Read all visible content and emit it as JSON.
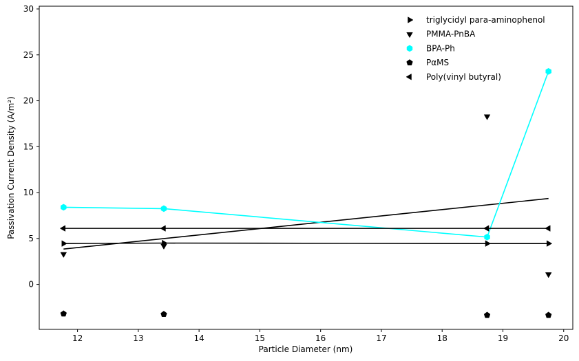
{
  "chart_data": {
    "type": "scatter",
    "xlabel": "Particle Diameter (nm)",
    "ylabel": "Passivation Current Density (A/m²)",
    "xlim": [
      11.37,
      20.15
    ],
    "ylim": [
      -4.9,
      30.3
    ],
    "xticks": [
      12,
      13,
      14,
      15,
      16,
      17,
      18,
      19,
      20
    ],
    "yticks": [
      0,
      5,
      10,
      15,
      20,
      25,
      30
    ],
    "grid": false,
    "legend_position": "top-right",
    "x": [
      11.77,
      13.42,
      18.74,
      19.75
    ],
    "series": [
      {
        "name": "triglycidyl para-aminophenol",
        "marker": "triangle-right",
        "color": "#000000",
        "line": true,
        "values": [
          4.45,
          4.5,
          4.45,
          4.45
        ]
      },
      {
        "name": "PMMA-PnBA",
        "marker": "triangle-down",
        "color": "#000000",
        "line": false,
        "values": [
          3.3,
          4.2,
          18.3,
          1.1
        ]
      },
      {
        "name": "BPA-Ph",
        "marker": "hexagon",
        "color": "#00ffff",
        "line": true,
        "values": [
          8.4,
          8.25,
          5.15,
          23.2
        ]
      },
      {
        "name": "PαMS",
        "marker": "pentagon",
        "color": "#000000",
        "line": false,
        "values": [
          -3.2,
          -3.25,
          -3.35,
          -3.35
        ]
      },
      {
        "name": "Poly(vinyl butyral)",
        "marker": "triangle-left",
        "color": "#000000",
        "line": true,
        "values": [
          6.1,
          6.1,
          6.1,
          6.1
        ]
      }
    ],
    "trend_line": {
      "color": "#000000",
      "x": [
        11.77,
        19.75
      ],
      "y": [
        3.85,
        9.35
      ]
    }
  }
}
